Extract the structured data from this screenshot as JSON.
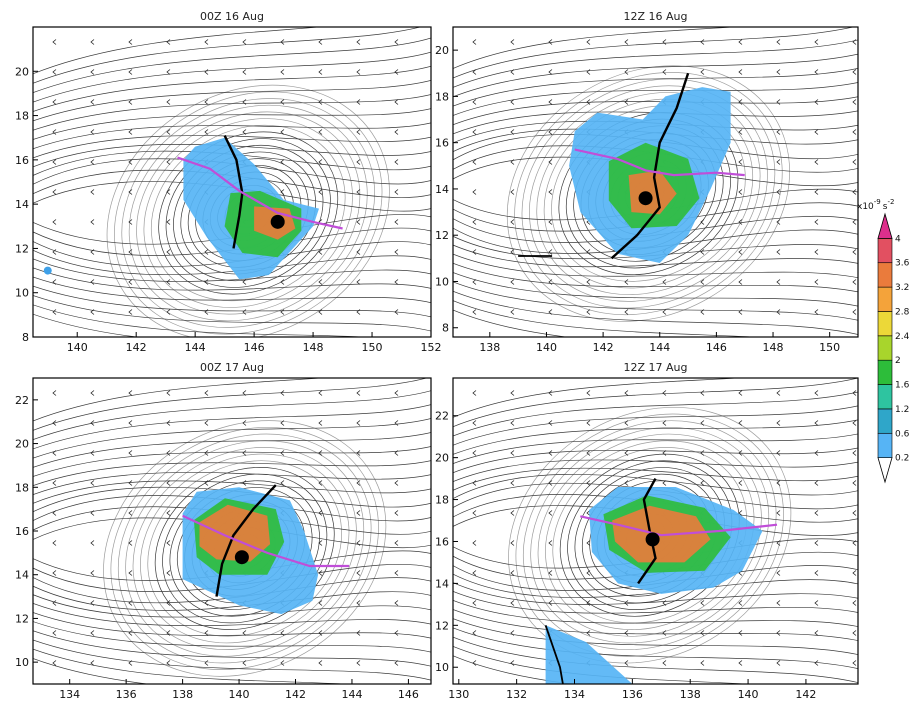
{
  "panels": [
    {
      "title": "00Z 16 Aug",
      "xlim": [
        138.5,
        152
      ],
      "ylim": [
        8,
        22
      ],
      "xticks": [
        140,
        142,
        144,
        146,
        148,
        150,
        152
      ],
      "yticks": [
        8,
        10,
        12,
        14,
        16,
        18,
        20
      ],
      "center": [
        146.8,
        13.2
      ],
      "shade_outline": [
        [
          143.6,
          16.0
        ],
        [
          144.0,
          16.6
        ],
        [
          145.0,
          17.0
        ],
        [
          146.0,
          15.8
        ],
        [
          147.0,
          14.2
        ],
        [
          148.2,
          13.8
        ],
        [
          148.0,
          13.0
        ],
        [
          146.5,
          10.8
        ],
        [
          145.5,
          10.6
        ],
        [
          144.4,
          12.5
        ],
        [
          143.6,
          14.2
        ]
      ],
      "warm_outline": [
        [
          145.2,
          14.5
        ],
        [
          146.2,
          14.6
        ],
        [
          147.6,
          13.8
        ],
        [
          147.6,
          12.8
        ],
        [
          146.8,
          11.6
        ],
        [
          145.6,
          11.8
        ],
        [
          145.0,
          13.0
        ]
      ],
      "hot_outline": [
        [
          146.0,
          13.9
        ],
        [
          147.2,
          13.8
        ],
        [
          147.4,
          12.9
        ],
        [
          146.8,
          12.4
        ],
        [
          146.0,
          12.8
        ]
      ],
      "axis_black": [
        [
          145.0,
          17.1
        ],
        [
          145.4,
          16.0
        ],
        [
          145.6,
          14.5
        ],
        [
          145.5,
          13.5
        ],
        [
          145.3,
          12.0
        ]
      ],
      "axis_purple": [
        [
          143.4,
          16.1
        ],
        [
          144.5,
          15.6
        ],
        [
          145.5,
          14.6
        ],
        [
          146.8,
          13.6
        ],
        [
          148.0,
          13.2
        ],
        [
          149.0,
          12.9
        ]
      ],
      "extra_dot": [
        139.0,
        11.0
      ],
      "swirl_center": [
        145.8,
        13.6
      ],
      "black_segments": []
    },
    {
      "title": "12Z 16 Aug",
      "xlim": [
        136.7,
        151
      ],
      "ylim": [
        7.6,
        21
      ],
      "xticks": [
        138,
        140,
        142,
        144,
        146,
        148,
        150
      ],
      "yticks": [
        8,
        10,
        12,
        14,
        16,
        18,
        20
      ],
      "center": [
        143.5,
        13.6
      ],
      "shade_outline": [
        [
          141.0,
          16.5
        ],
        [
          141.8,
          17.3
        ],
        [
          143.4,
          17.0
        ],
        [
          144.2,
          18.0
        ],
        [
          145.5,
          18.4
        ],
        [
          146.5,
          18.2
        ],
        [
          146.5,
          16.0
        ],
        [
          145.8,
          14.0
        ],
        [
          145.0,
          12.0
        ],
        [
          144.0,
          10.8
        ],
        [
          142.5,
          11.2
        ],
        [
          141.2,
          13.0
        ],
        [
          140.8,
          15.0
        ]
      ],
      "warm_outline": [
        [
          142.2,
          15.2
        ],
        [
          143.5,
          16.0
        ],
        [
          145.0,
          15.3
        ],
        [
          145.4,
          13.6
        ],
        [
          144.6,
          12.4
        ],
        [
          143.0,
          12.3
        ],
        [
          142.2,
          13.5
        ]
      ],
      "hot_outline": [
        [
          142.9,
          14.6
        ],
        [
          144.0,
          14.8
        ],
        [
          144.6,
          13.8
        ],
        [
          144.0,
          12.9
        ],
        [
          143.0,
          13.0
        ]
      ],
      "axis_black": [
        [
          145.0,
          19.0
        ],
        [
          144.6,
          17.5
        ],
        [
          144.0,
          16.0
        ],
        [
          143.8,
          14.5
        ],
        [
          144.0,
          13.2
        ],
        [
          143.2,
          12.0
        ],
        [
          142.3,
          11.0
        ]
      ],
      "axis_purple": [
        [
          141.0,
          15.7
        ],
        [
          142.5,
          15.3
        ],
        [
          143.5,
          14.8
        ],
        [
          144.5,
          14.6
        ],
        [
          146.0,
          14.7
        ],
        [
          147.0,
          14.6
        ]
      ],
      "extra_dot": null,
      "swirl_center": [
        143.6,
        13.8
      ],
      "black_segments": [
        [
          [
            139.0,
            11.1
          ],
          [
            140.2,
            11.1
          ]
        ]
      ]
    },
    {
      "title": "00Z 17 Aug",
      "xlim": [
        132.7,
        146.8
      ],
      "ylim": [
        9,
        23
      ],
      "xticks": [
        134,
        136,
        138,
        140,
        142,
        144,
        146
      ],
      "yticks": [
        10,
        12,
        14,
        16,
        18,
        20,
        22
      ],
      "center": [
        140.1,
        14.8
      ],
      "shade_outline": [
        [
          138.0,
          16.8
        ],
        [
          138.5,
          17.8
        ],
        [
          140.0,
          18.0
        ],
        [
          141.8,
          17.4
        ],
        [
          142.3,
          16.0
        ],
        [
          142.8,
          14.0
        ],
        [
          142.6,
          12.8
        ],
        [
          141.5,
          12.2
        ],
        [
          140.0,
          12.6
        ],
        [
          138.0,
          13.8
        ]
      ],
      "warm_outline": [
        [
          138.4,
          16.5
        ],
        [
          139.5,
          17.5
        ],
        [
          141.3,
          17.0
        ],
        [
          141.6,
          15.5
        ],
        [
          141.0,
          14.0
        ],
        [
          139.3,
          14.0
        ],
        [
          138.5,
          14.8
        ]
      ],
      "hot_outline": [
        [
          138.6,
          16.4
        ],
        [
          139.6,
          17.2
        ],
        [
          141.0,
          16.7
        ],
        [
          141.1,
          15.4
        ],
        [
          140.4,
          14.6
        ],
        [
          139.2,
          14.7
        ],
        [
          138.6,
          15.3
        ]
      ],
      "axis_black": [
        [
          141.3,
          18.1
        ],
        [
          140.5,
          17.0
        ],
        [
          139.8,
          15.8
        ],
        [
          139.4,
          14.5
        ],
        [
          139.2,
          13.0
        ]
      ],
      "axis_purple": [
        [
          138.0,
          16.7
        ],
        [
          139.5,
          15.8
        ],
        [
          141.0,
          15.0
        ],
        [
          142.5,
          14.4
        ],
        [
          143.9,
          14.4
        ]
      ],
      "extra_dot": null,
      "swirl_center": [
        140.2,
        15.2
      ],
      "black_segments": []
    },
    {
      "title": "12Z 17 Aug",
      "xlim": [
        129.8,
        143.8
      ],
      "ylim": [
        9.2,
        23.8
      ],
      "xticks": [
        130,
        132,
        134,
        136,
        138,
        140,
        142
      ],
      "yticks": [
        10,
        12,
        14,
        16,
        18,
        20,
        22
      ],
      "center": [
        136.7,
        16.1
      ],
      "shade_outline": [
        [
          134.5,
          17.5
        ],
        [
          135.5,
          18.6
        ],
        [
          137.5,
          18.6
        ],
        [
          139.5,
          17.5
        ],
        [
          140.5,
          16.5
        ],
        [
          139.8,
          14.6
        ],
        [
          138.8,
          13.8
        ],
        [
          137.0,
          13.5
        ],
        [
          135.5,
          14.0
        ],
        [
          134.6,
          15.5
        ]
      ],
      "warm_outline": [
        [
          135.0,
          17.3
        ],
        [
          136.5,
          18.2
        ],
        [
          138.5,
          17.6
        ],
        [
          139.4,
          16.2
        ],
        [
          138.5,
          14.6
        ],
        [
          136.5,
          14.5
        ],
        [
          135.2,
          15.6
        ]
      ],
      "hot_outline": [
        [
          135.3,
          17.0
        ],
        [
          136.6,
          17.7
        ],
        [
          138.2,
          17.2
        ],
        [
          138.7,
          16.1
        ],
        [
          137.8,
          15.0
        ],
        [
          136.2,
          15.0
        ],
        [
          135.4,
          16.0
        ]
      ],
      "axis_black": [
        [
          136.8,
          19.0
        ],
        [
          136.4,
          18.0
        ],
        [
          136.6,
          16.5
        ],
        [
          136.8,
          15.2
        ],
        [
          136.2,
          14.0
        ]
      ],
      "axis_purple": [
        [
          134.2,
          17.2
        ],
        [
          135.5,
          16.8
        ],
        [
          137.0,
          16.3
        ],
        [
          139.0,
          16.5
        ],
        [
          141.0,
          16.8
        ]
      ],
      "extra_dot": null,
      "swirl_center": [
        136.6,
        16.3
      ],
      "black_segments": [
        [
          [
            133.0,
            12.0
          ],
          [
            133.5,
            10.0
          ],
          [
            133.6,
            9.2
          ]
        ]
      ],
      "extra_blob": [
        [
          133.0,
          12.0
        ],
        [
          134.4,
          11.2
        ],
        [
          136.0,
          9.2
        ],
        [
          133.0,
          9.2
        ]
      ]
    }
  ],
  "colorbar": {
    "unit_base": "x10",
    "unit_exp1": "-9",
    "unit_s": "s",
    "unit_exp2": "-2",
    "labels": [
      "0.2",
      "0.6",
      "1.2",
      "1.6",
      "2",
      "2.4",
      "2.8",
      "3.2",
      "3.6",
      "4"
    ],
    "colors": [
      "#ffffff",
      "#56b4f5",
      "#2fa6c9",
      "#2ec4a0",
      "#2dbd3a",
      "#a8d52c",
      "#ecd838",
      "#f4a33a",
      "#ea7b3c",
      "#e25061",
      "#dd2f8c"
    ]
  }
}
